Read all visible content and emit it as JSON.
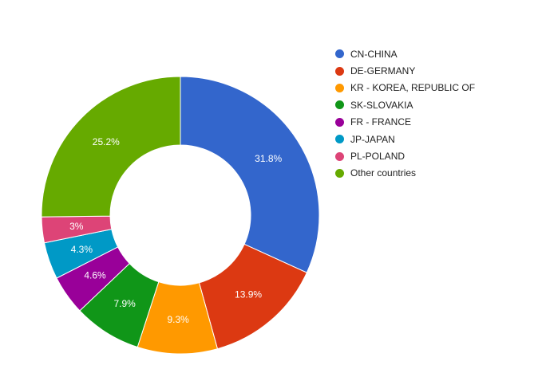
{
  "chart_data": {
    "type": "pie",
    "donut": true,
    "legend_position": "right",
    "slices": [
      {
        "label": "CN-CHINA",
        "value": 31.8,
        "display": "31.8%",
        "color": "#3366cc"
      },
      {
        "label": "DE-GERMANY",
        "value": 13.9,
        "display": "13.9%",
        "color": "#dc3912"
      },
      {
        "label": "KR - KOREA, REPUBLIC OF",
        "value": 9.3,
        "display": "9.3%",
        "color": "#ff9900"
      },
      {
        "label": "SK-SLOVAKIA",
        "value": 7.9,
        "display": "7.9%",
        "color": "#109618"
      },
      {
        "label": "FR - FRANCE",
        "value": 4.6,
        "display": "4.6%",
        "color": "#990099"
      },
      {
        "label": "JP-JAPAN",
        "value": 4.3,
        "display": "4.3%",
        "color": "#0099c6"
      },
      {
        "label": "PL-POLAND",
        "value": 3.0,
        "display": "3%",
        "color": "#dd4477"
      },
      {
        "label": "Other countries",
        "value": 25.2,
        "display": "25.2%",
        "color": "#66aa00"
      }
    ]
  }
}
